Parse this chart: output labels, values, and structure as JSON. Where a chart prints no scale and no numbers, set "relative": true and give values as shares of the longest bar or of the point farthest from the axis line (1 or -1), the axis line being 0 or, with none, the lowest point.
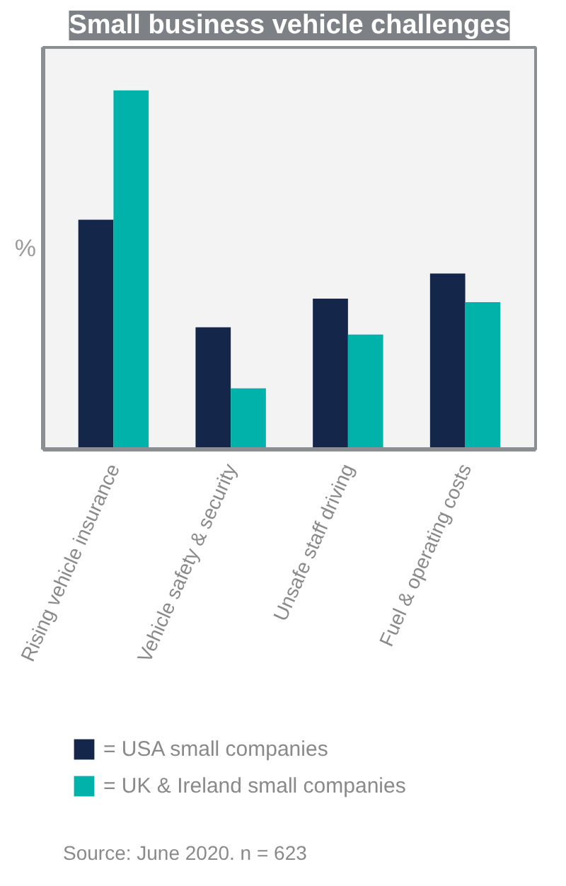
{
  "chart_data": {
    "type": "bar",
    "title": "Small business vehicle challenges",
    "ylabel": "%",
    "relative": true,
    "categories": [
      "Rising vehicle insurance",
      "Vehicle safety & security",
      "Unsafe staff driving",
      "Fuel & operating costs"
    ],
    "series": [
      {
        "name": "= USA small companies",
        "color": "#14274a",
        "values": [
          0.64,
          0.34,
          0.42,
          0.49
        ]
      },
      {
        "name": "= UK & Ireland small companies",
        "color": "#00b2a9",
        "values": [
          1,
          0.17,
          0.32,
          0.41
        ]
      }
    ],
    "legend": "bottom",
    "annotations": [
      "Source: June 2020.   n = 623"
    ]
  }
}
